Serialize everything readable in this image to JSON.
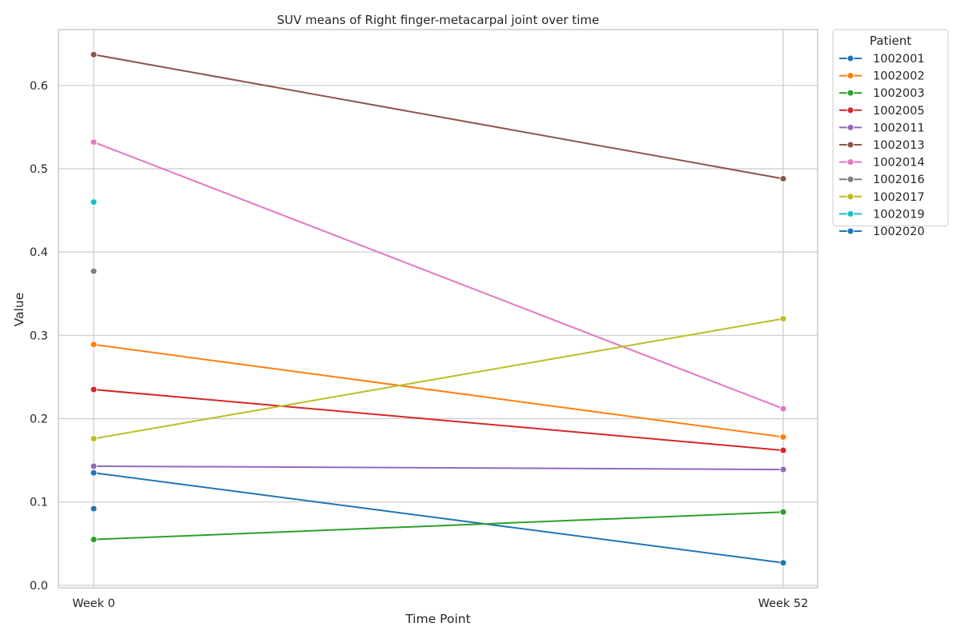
{
  "chart_data": {
    "type": "line",
    "title": "SUV means of Right finger-metacarpal joint over time",
    "xlabel": "Time Point",
    "ylabel": "Value",
    "categories": [
      "Week 0",
      "Week 52"
    ],
    "ylim": [
      -0.003,
      0.667
    ],
    "yticks": [
      0.0,
      0.1,
      0.2,
      0.3,
      0.4,
      0.5,
      0.6
    ],
    "ytick_labels": [
      "0.0",
      "0.1",
      "0.2",
      "0.3",
      "0.4",
      "0.5",
      "0.6"
    ],
    "grid": true,
    "legend": {
      "title": "Patient",
      "placement": "outside-top-right"
    },
    "series": [
      {
        "name": "1002001",
        "color": "#1f77b4",
        "values": [
          0.135,
          0.027
        ]
      },
      {
        "name": "1002002",
        "color": "#ff7f0e",
        "values": [
          0.289,
          0.178
        ]
      },
      {
        "name": "1002003",
        "color": "#2ca02c",
        "values": [
          0.055,
          0.088
        ]
      },
      {
        "name": "1002005",
        "color": "#d62728",
        "values": [
          0.235,
          0.162
        ]
      },
      {
        "name": "1002011",
        "color": "#9467bd",
        "values": [
          0.143,
          0.139
        ]
      },
      {
        "name": "1002013",
        "color": "#8c564b",
        "values": [
          0.637,
          0.488
        ]
      },
      {
        "name": "1002014",
        "color": "#e377c2",
        "values": [
          0.532,
          0.212
        ]
      },
      {
        "name": "1002016",
        "color": "#7f7f7f",
        "values": [
          0.377,
          null
        ]
      },
      {
        "name": "1002017",
        "color": "#bcbd22",
        "values": [
          0.176,
          0.32
        ]
      },
      {
        "name": "1002019",
        "color": "#17becf",
        "values": [
          0.46,
          null
        ]
      },
      {
        "name": "1002020",
        "color": "#1f77b4",
        "values": [
          0.092,
          null
        ]
      }
    ]
  }
}
